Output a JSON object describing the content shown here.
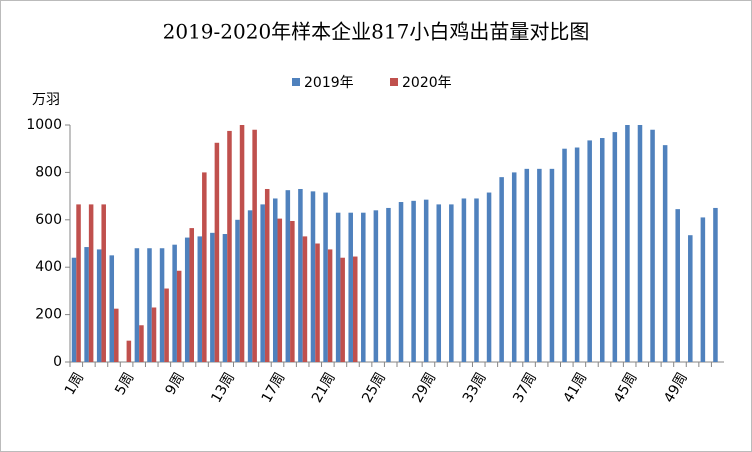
{
  "chart_data": {
    "type": "bar",
    "title": "2019-2020年样本企业817小白鸡出苗量对比图",
    "y_label": "万羽",
    "categories": [
      "1周",
      null,
      null,
      null,
      "5周",
      null,
      null,
      null,
      "9周",
      null,
      null,
      null,
      "13周",
      null,
      null,
      null,
      "17周",
      null,
      null,
      null,
      "21周",
      null,
      null,
      null,
      "25周",
      null,
      null,
      null,
      "29周",
      null,
      null,
      null,
      "33周",
      null,
      null,
      null,
      "37周",
      null,
      null,
      null,
      "41周",
      null,
      null,
      null,
      "45周",
      null,
      null,
      null,
      "49周",
      null,
      null,
      null
    ],
    "series": [
      {
        "name": "2019年",
        "color": "#4f81bd",
        "values": [
          440,
          485,
          475,
          450,
          null,
          480,
          480,
          480,
          495,
          525,
          530,
          545,
          540,
          600,
          640,
          665,
          690,
          725,
          730,
          720,
          715,
          630,
          630,
          630,
          640,
          650,
          675,
          680,
          685,
          665,
          665,
          690,
          690,
          715,
          780,
          800,
          815,
          815,
          815,
          900,
          905,
          935,
          945,
          970,
          1000,
          1000,
          980,
          915,
          645,
          535,
          610,
          650
        ]
      },
      {
        "name": "2020年",
        "color": "#c0504d",
        "values": [
          665,
          665,
          665,
          225,
          90,
          155,
          230,
          310,
          385,
          565,
          800,
          925,
          975,
          1000,
          980,
          730,
          605,
          595,
          530,
          500,
          475,
          440,
          445,
          null,
          null,
          null,
          null,
          null,
          null,
          null,
          null,
          null,
          null,
          null,
          null,
          null,
          null,
          null,
          null,
          null,
          null,
          null,
          null,
          null,
          null,
          null,
          null,
          null,
          null,
          null,
          null,
          null
        ]
      }
    ],
    "ylim": [
      0,
      1000
    ],
    "yticks": [
      0,
      200,
      400,
      600,
      800,
      1000
    ],
    "grid": false,
    "legend": "top"
  }
}
